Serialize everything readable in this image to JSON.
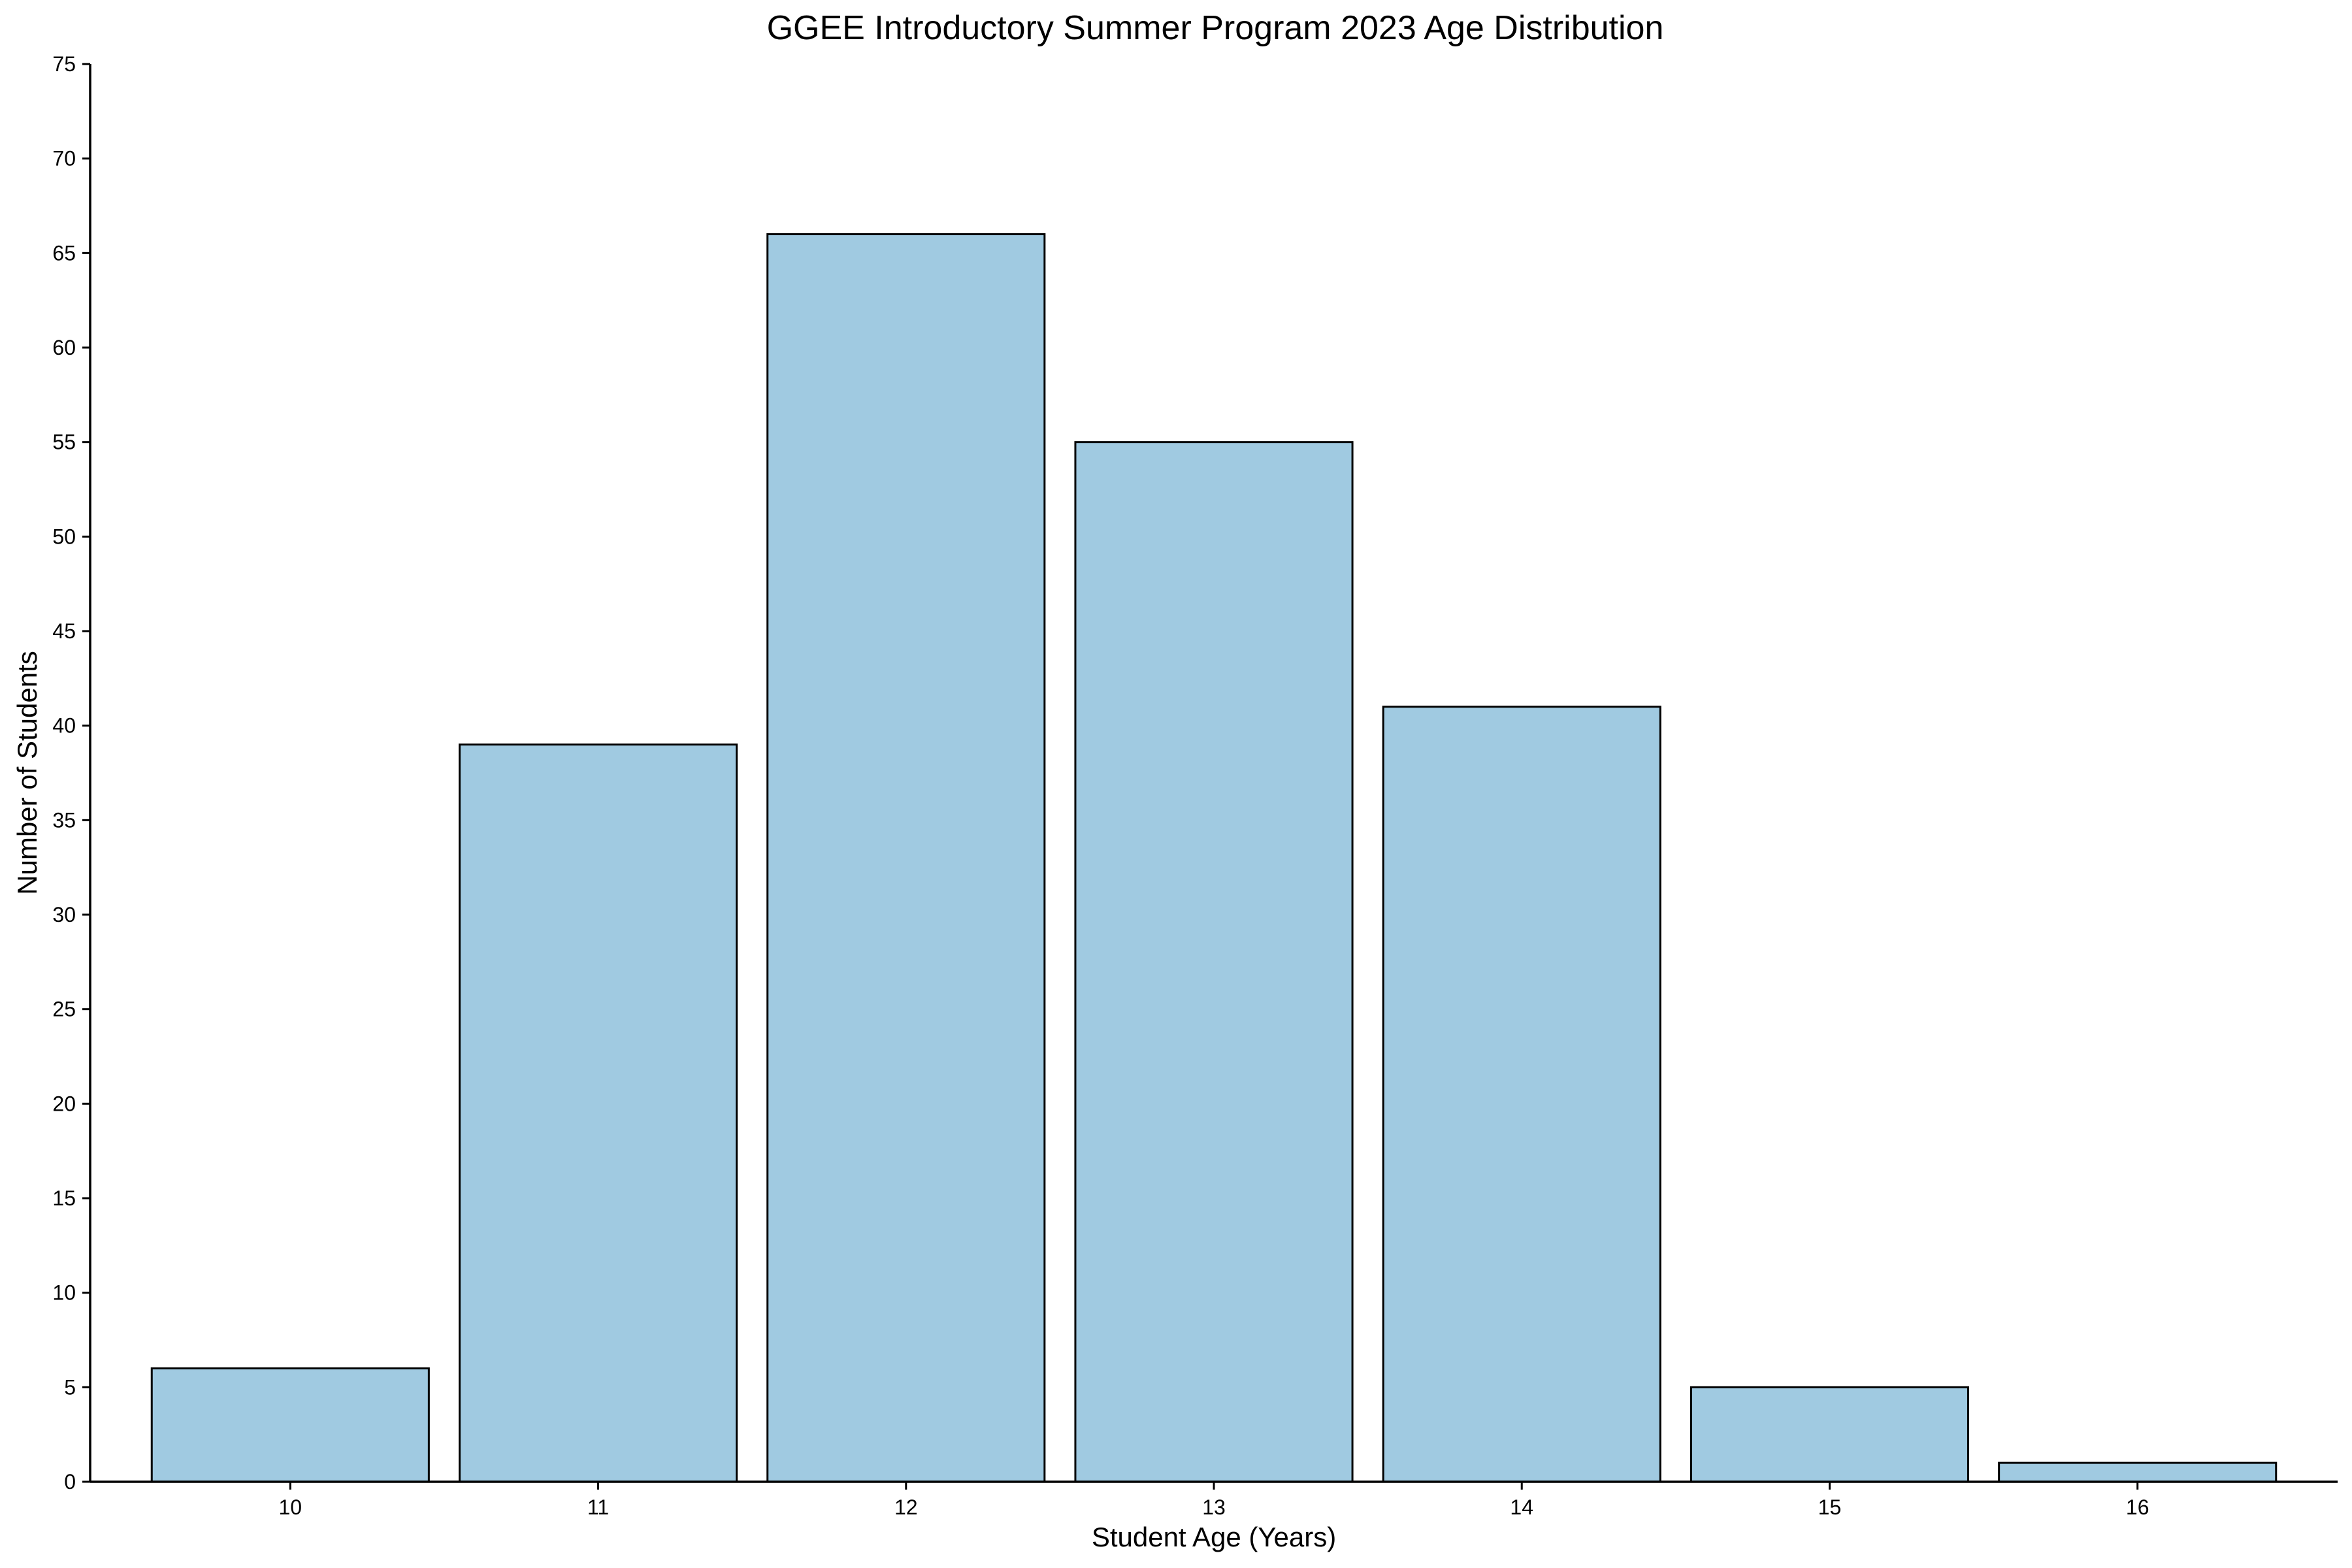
{
  "chart_data": {
    "type": "bar",
    "title": "GGEE Introductory Summer Program 2023 Age Distribution",
    "xlabel": "Student Age (Years)",
    "ylabel": "Number of Students",
    "categories": [
      "10",
      "11",
      "12",
      "13",
      "14",
      "15",
      "16"
    ],
    "values": [
      6,
      39,
      66,
      55,
      41,
      5,
      1
    ],
    "ylim": [
      0,
      75
    ],
    "yticks": [
      0,
      5,
      10,
      15,
      20,
      25,
      30,
      35,
      40,
      45,
      50,
      55,
      60,
      65,
      70,
      75
    ],
    "grid": false,
    "legend": "none",
    "colors": {
      "bar_fill": "#a0cae1",
      "bar_edge": "#000000",
      "axis": "#000000",
      "background": "#ffffff"
    }
  }
}
